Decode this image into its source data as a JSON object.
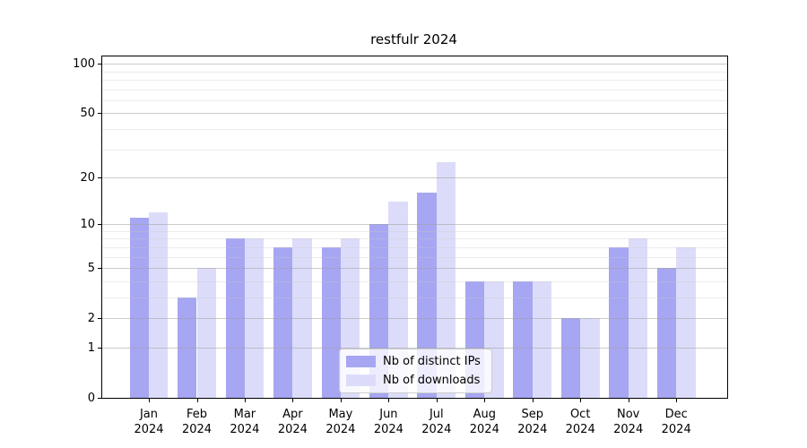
{
  "title": "restfulr 2024",
  "legend": {
    "items": [
      {
        "label": "Nb of distinct IPs",
        "color": "#a6a6f2"
      },
      {
        "label": "Nb of downloads",
        "color": "#dcdcfa"
      }
    ]
  },
  "chart_data": {
    "type": "bar",
    "title": "restfulr 2024",
    "categories": [
      "Jan 2024",
      "Feb 2024",
      "Mar 2024",
      "Apr 2024",
      "May 2024",
      "Jun 2024",
      "Jul 2024",
      "Aug 2024",
      "Sep 2024",
      "Oct 2024",
      "Nov 2024",
      "Dec 2024"
    ],
    "series": [
      {
        "name": "Nb of distinct IPs",
        "color": "#a6a6f2",
        "values": [
          11,
          3,
          8,
          7,
          7,
          10,
          16,
          4,
          4,
          2,
          7,
          5
        ]
      },
      {
        "name": "Nb of downloads",
        "color": "#dcdcfa",
        "values": [
          12,
          5,
          8,
          8,
          8,
          14,
          25,
          4,
          4,
          2,
          8,
          7
        ]
      }
    ],
    "xlabel": "",
    "ylabel": "",
    "yscale": "log1p",
    "ylim": [
      0,
      110.6
    ],
    "y_major_ticks": [
      100,
      50,
      20,
      10,
      5,
      2,
      1,
      0
    ],
    "y_major_tick_labels": [
      "100",
      "50",
      "20",
      "10",
      "5",
      "2",
      "1",
      "0"
    ],
    "y_minor_ticks": [
      3,
      4,
      6,
      7,
      8,
      9,
      30,
      40,
      60,
      70,
      80,
      90
    ],
    "grid": "horizontal, drawn above bars",
    "legend_position": "lower center"
  },
  "colors": {
    "background": "#ffffff",
    "axis": "#000000",
    "major_grid": "#a0a0a0",
    "minor_grid": "#c8c8c8"
  }
}
